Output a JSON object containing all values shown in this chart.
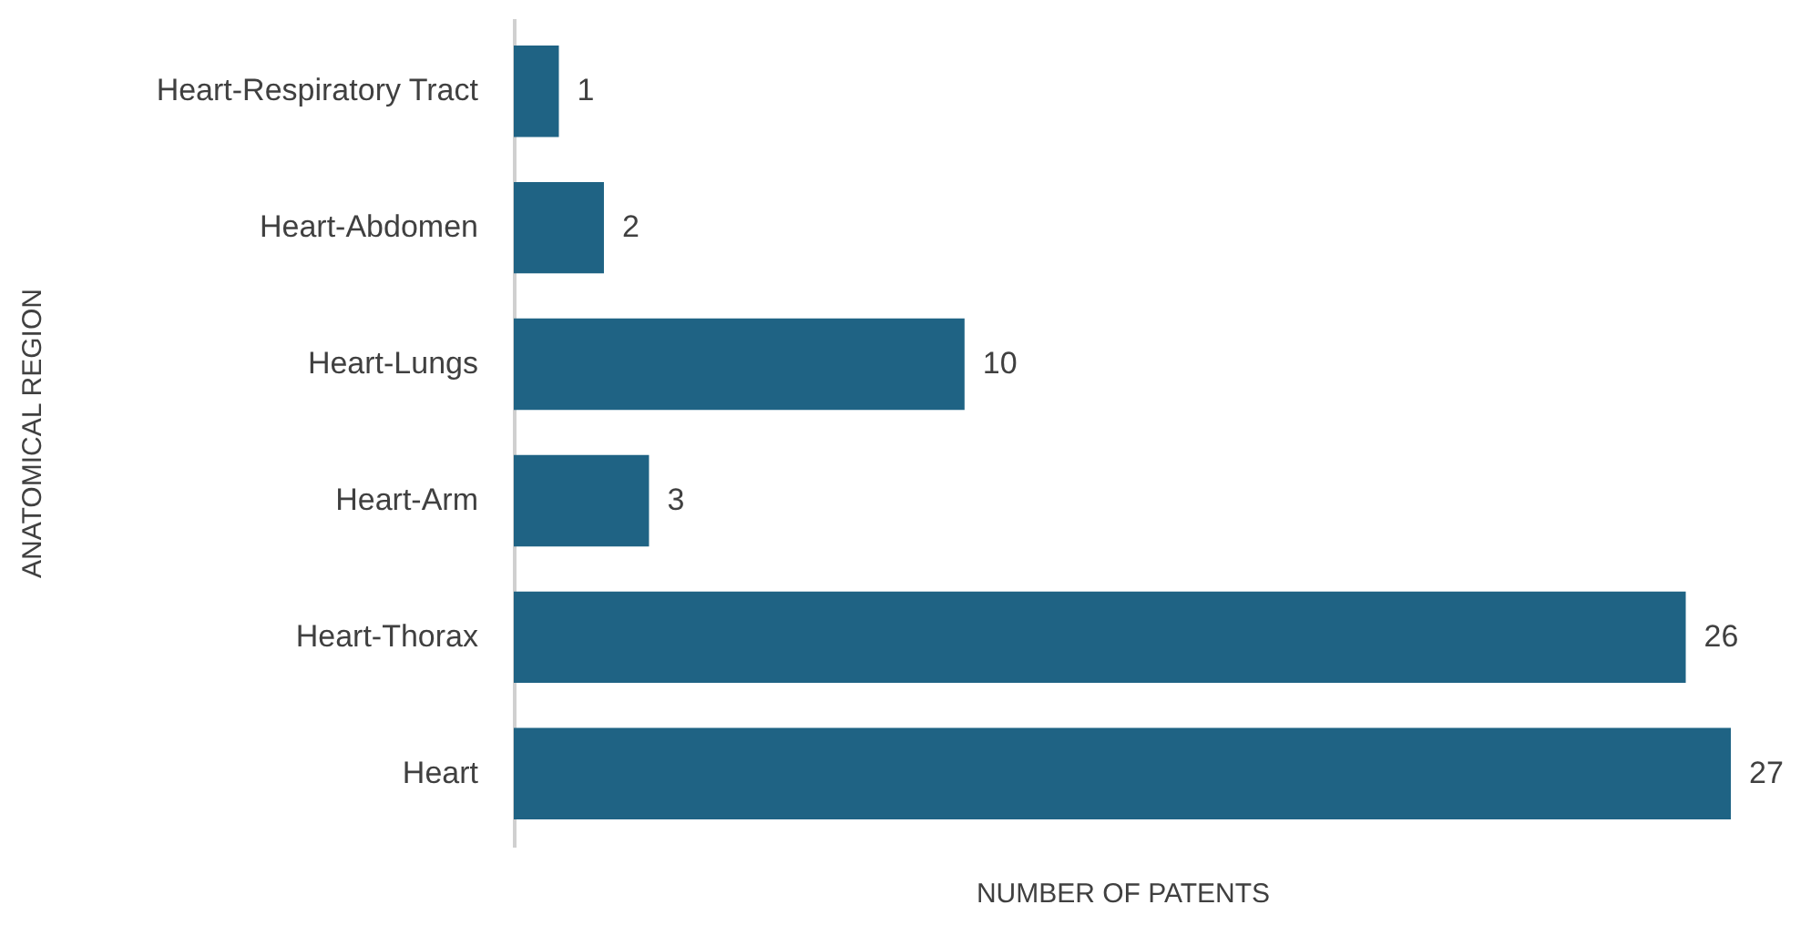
{
  "chart_data": {
    "type": "bar",
    "orientation": "horizontal",
    "xlabel": "NUMBER OF PATENTS",
    "ylabel": "ANATOMICAL REGION",
    "categories": [
      "Heart-Respiratory Tract",
      "Heart-Abdomen",
      "Heart-Lungs",
      "Heart-Arm",
      "Heart-Thorax",
      "Heart"
    ],
    "values": [
      1,
      2,
      10,
      3,
      26,
      27
    ],
    "color": "#1f6384",
    "data_labels": true,
    "grid": false
  }
}
